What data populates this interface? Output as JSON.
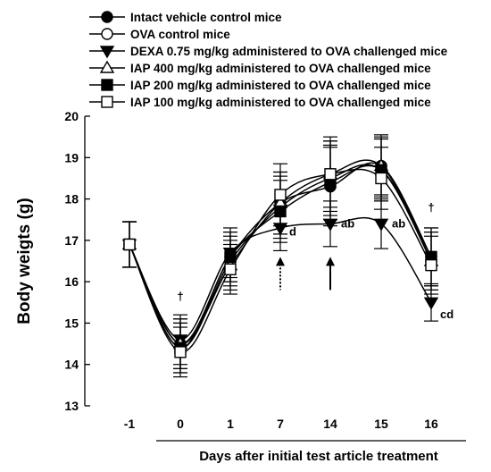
{
  "chart_data": {
    "type": "line",
    "title": "",
    "xlabel": "Days after initial test article treatment",
    "ylabel": "Body weigts (g)",
    "categories": [
      "-1",
      "0",
      "1",
      "7",
      "14",
      "15",
      "16"
    ],
    "ylim": [
      13,
      20
    ],
    "yticks": [
      "13",
      "14",
      "15",
      "16",
      "17",
      "18",
      "19",
      "20"
    ],
    "grid": false,
    "legend_position": "top",
    "series": [
      {
        "name": "Intact vehicle control mice",
        "marker": "circle-filled",
        "values": [
          16.9,
          14.5,
          16.6,
          17.9,
          18.3,
          18.8,
          16.6
        ],
        "errors": [
          0.55,
          0.6,
          0.6,
          0.75,
          0.95,
          0.7,
          0.7
        ]
      },
      {
        "name": "OVA control mice",
        "marker": "circle-open",
        "values": [
          16.9,
          14.4,
          16.5,
          17.8,
          18.5,
          18.7,
          16.5
        ],
        "errors": [
          0.55,
          0.6,
          0.6,
          0.75,
          0.9,
          0.75,
          0.7
        ]
      },
      {
        "name": "DEXA 0.75 mg/kg administered to OVA challenged mice",
        "marker": "triangle-down-filled",
        "values": [
          16.9,
          14.6,
          16.7,
          17.3,
          17.4,
          17.4,
          15.5
        ],
        "errors": [
          0.55,
          0.6,
          0.6,
          0.55,
          0.55,
          0.6,
          0.45
        ]
      },
      {
        "name": "IAP 400 mg/kg administered to OVA challenged mice",
        "marker": "triangle-up-open",
        "values": [
          16.9,
          14.5,
          16.4,
          17.9,
          18.6,
          18.8,
          16.5
        ],
        "errors": [
          0.55,
          0.6,
          0.6,
          0.75,
          0.9,
          0.75,
          0.7
        ]
      },
      {
        "name": "IAP 200 mg/kg administered to OVA challenged mice",
        "marker": "square-filled",
        "values": [
          16.9,
          14.4,
          16.6,
          17.7,
          18.4,
          18.7,
          16.6
        ],
        "errors": [
          0.55,
          0.6,
          0.6,
          0.75,
          0.9,
          0.75,
          0.7
        ]
      },
      {
        "name": "IAP 100 mg/kg administered to OVA challenged mice",
        "marker": "square-open",
        "values": [
          16.9,
          14.3,
          16.3,
          18.1,
          18.6,
          18.5,
          16.4
        ],
        "errors": [
          0.55,
          0.6,
          0.6,
          0.75,
          0.8,
          0.75,
          0.7
        ]
      }
    ],
    "annotations": [
      {
        "text": "†",
        "category": "0",
        "y": 15.55
      },
      {
        "text": "d",
        "category": "7",
        "y": 17.2
      },
      {
        "text": "ab",
        "category": "14",
        "y": 17.4
      },
      {
        "text": "ab",
        "category": "15",
        "y": 17.4
      },
      {
        "text": "†",
        "category": "16",
        "y": 17.7
      },
      {
        "text": "cd",
        "category": "16",
        "y": 15.2
      }
    ],
    "arrows": [
      {
        "category": "7",
        "style": "dotted",
        "y_from": 15.8,
        "y_to": 16.6
      },
      {
        "category": "14",
        "style": "solid",
        "y_from": 15.8,
        "y_to": 16.6
      }
    ]
  }
}
